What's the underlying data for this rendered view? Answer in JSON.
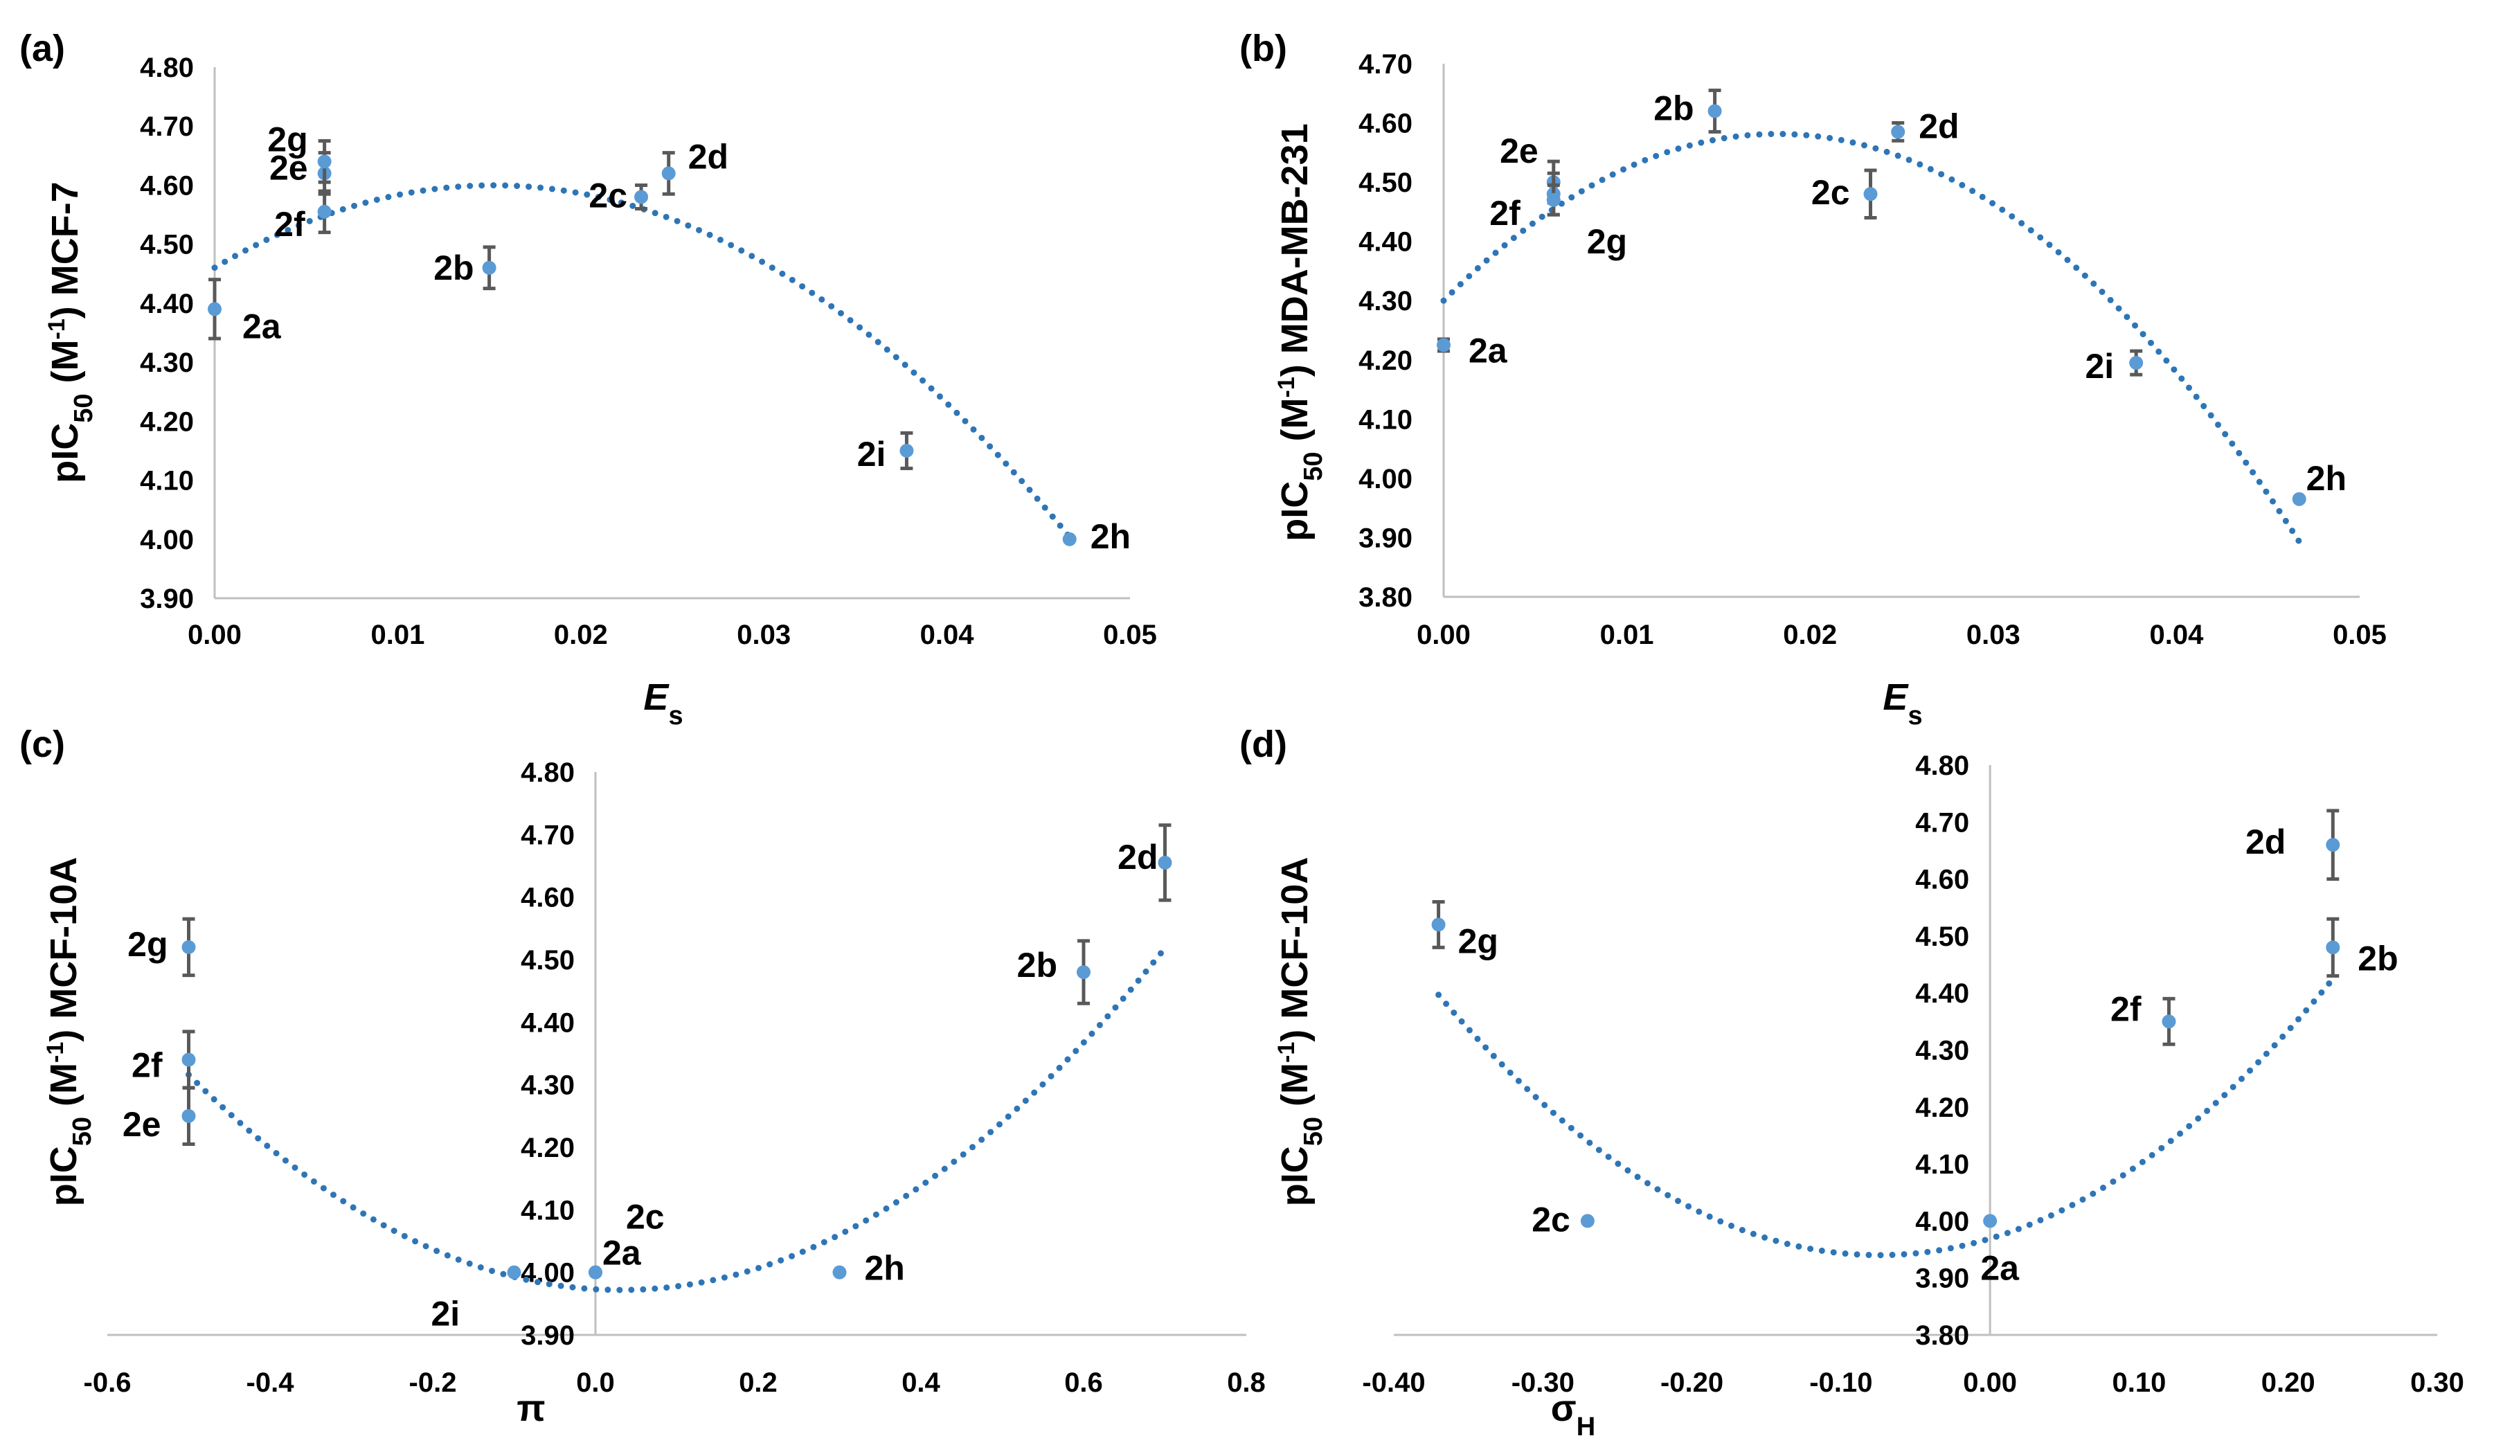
{
  "figure": {
    "colors": {
      "point": "#5b9bd5",
      "trend": "#2e75b6",
      "errorbar": "#595959",
      "axis": "#bfbfbf",
      "text": "#000000"
    }
  },
  "chart_data": [
    {
      "type": "scatter",
      "panel_label": "(a)",
      "ylabel": {
        "pre": "pIC",
        "sub": "50",
        "mid": " (M",
        "sup": "-1",
        "post": ") MCF-7"
      },
      "xlabel": {
        "main": "E",
        "sub": "s"
      },
      "xlim": [
        0,
        0.05
      ],
      "ylim": [
        3.9,
        4.8
      ],
      "xticks": [
        "0.00",
        "0.01",
        "0.02",
        "0.03",
        "0.04",
        "0.05"
      ],
      "yticks": [
        "3.90",
        "4.00",
        "4.10",
        "4.20",
        "4.30",
        "4.40",
        "4.50",
        "4.60",
        "4.70",
        "4.80"
      ],
      "points": [
        {
          "label": "2a",
          "x": 0.0,
          "y": 4.39,
          "err": 0.05
        },
        {
          "label": "2b",
          "x": 0.015,
          "y": 4.46,
          "err": 0.035
        },
        {
          "label": "2c",
          "x": 0.0233,
          "y": 4.58,
          "err": 0.02
        },
        {
          "label": "2d",
          "x": 0.0248,
          "y": 4.62,
          "err": 0.035
        },
        {
          "label": "2e",
          "x": 0.006,
          "y": 4.62,
          "err": 0.035
        },
        {
          "label": "2f",
          "x": 0.006,
          "y": 4.555,
          "err": 0.035
        },
        {
          "label": "2g",
          "x": 0.006,
          "y": 4.64,
          "err": 0.035
        },
        {
          "label": "2h",
          "x": 0.0467,
          "y": 4.0,
          "err": 0.0
        },
        {
          "label": "2i",
          "x": 0.0378,
          "y": 4.15,
          "err": 0.03
        }
      ],
      "trend": {
        "type": "quadratic",
        "a": -601.8,
        "b": 18.33,
        "c": 4.4602,
        "x_range": [
          0,
          0.0467
        ]
      }
    },
    {
      "type": "scatter",
      "panel_label": "(b)",
      "ylabel": {
        "pre": "pIC",
        "sub": "50",
        "mid": " (M",
        "sup": "-1",
        "post": ") MDA-MB-231"
      },
      "xlabel": {
        "main": "E",
        "sub": "s"
      },
      "xlim": [
        0,
        0.05
      ],
      "ylim": [
        3.8,
        4.7
      ],
      "xticks": [
        "0.00",
        "0.01",
        "0.02",
        "0.03",
        "0.04",
        "0.05"
      ],
      "yticks": [
        "3.80",
        "3.90",
        "4.00",
        "4.10",
        "4.20",
        "4.30",
        "4.40",
        "4.50",
        "4.60",
        "4.70"
      ],
      "points": [
        {
          "label": "2a",
          "x": 0.0,
          "y": 4.225,
          "err": 0.01
        },
        {
          "label": "2b",
          "x": 0.0148,
          "y": 4.62,
          "err": 0.035
        },
        {
          "label": "2c",
          "x": 0.0233,
          "y": 4.48,
          "err": 0.04
        },
        {
          "label": "2d",
          "x": 0.0248,
          "y": 4.585,
          "err": 0.015
        },
        {
          "label": "2e",
          "x": 0.006,
          "y": 4.5,
          "err": 0.035
        },
        {
          "label": "2f",
          "x": 0.006,
          "y": 4.48,
          "err": 0.035
        },
        {
          "label": "2g",
          "x": 0.006,
          "y": 4.47,
          "err": 0.025
        },
        {
          "label": "2h",
          "x": 0.0467,
          "y": 3.965,
          "err": 0.0
        },
        {
          "label": "2i",
          "x": 0.0378,
          "y": 4.195,
          "err": 0.02
        }
      ],
      "trend": {
        "type": "quadratic",
        "a": -848.2,
        "b": 30.9,
        "c": 4.3,
        "x_range": [
          0,
          0.0467
        ]
      }
    },
    {
      "type": "scatter",
      "panel_label": "(c)",
      "ylabel": {
        "pre": "pIC",
        "sub": "50",
        "mid": " (M",
        "sup": "-1",
        "post": ") MCF-10A"
      },
      "xlabel": {
        "main": "π",
        "sub": ""
      },
      "xlim": [
        -0.6,
        0.8
      ],
      "ylim": [
        3.9,
        4.8
      ],
      "xticks": [
        "-0.6",
        "-0.4",
        "-0.2",
        "0.0",
        "0.2",
        "0.4",
        "0.6",
        "0.8"
      ],
      "yticks": [
        "3.90",
        "4.00",
        "4.10",
        "4.20",
        "4.30",
        "4.40",
        "4.50",
        "4.60",
        "4.70",
        "4.80"
      ],
      "points": [
        {
          "label": "2a",
          "x": 0.0,
          "y": 4.0,
          "err": 0.0
        },
        {
          "label": "2b",
          "x": 0.6,
          "y": 4.48,
          "err": 0.05
        },
        {
          "label": "2c",
          "x": 0.0,
          "y": 4.0,
          "err": 0.0
        },
        {
          "label": "2d",
          "x": 0.7,
          "y": 4.655,
          "err": 0.06
        },
        {
          "label": "2e",
          "x": -0.5,
          "y": 4.25,
          "err": 0.045
        },
        {
          "label": "2f",
          "x": -0.5,
          "y": 4.34,
          "err": 0.045
        },
        {
          "label": "2g",
          "x": -0.5,
          "y": 4.52,
          "err": 0.045
        },
        {
          "label": "2h",
          "x": 0.3,
          "y": 4.0,
          "err": 0.0
        },
        {
          "label": "2i",
          "x": -0.1,
          "y": 4.0,
          "err": 0.0
        }
      ],
      "trend": {
        "type": "quadratic",
        "a": 1.221,
        "b": -0.0755,
        "c": 3.973,
        "x_range": [
          -0.5,
          0.7
        ]
      }
    },
    {
      "type": "scatter",
      "panel_label": "(d)",
      "ylabel": {
        "pre": "pIC",
        "sub": "50",
        "mid": " (M",
        "sup": "-1",
        "post": ") MCF-10A"
      },
      "xlabel": {
        "main": "σ",
        "sub": "H"
      },
      "xlim": [
        -0.4,
        0.3
      ],
      "ylim": [
        3.8,
        4.8
      ],
      "xticks": [
        "-0.40",
        "-0.30",
        "-0.20",
        "-0.10",
        "0.00",
        "0.10",
        "0.20",
        "0.30"
      ],
      "yticks": [
        "3.80",
        "3.90",
        "4.00",
        "4.10",
        "4.20",
        "4.30",
        "4.40",
        "4.50",
        "4.60",
        "4.70",
        "4.80"
      ],
      "points": [
        {
          "label": "2a",
          "x": 0.0,
          "y": 4.0,
          "err": 0.0
        },
        {
          "label": "2b",
          "x": 0.23,
          "y": 4.48,
          "err": 0.05
        },
        {
          "label": "2c",
          "x": -0.27,
          "y": 4.0,
          "err": 0.0
        },
        {
          "label": "2d",
          "x": 0.23,
          "y": 4.66,
          "err": 0.06
        },
        {
          "label": "2f",
          "x": 0.12,
          "y": 4.35,
          "err": 0.04
        },
        {
          "label": "2g",
          "x": -0.37,
          "y": 4.52,
          "err": 0.04
        }
      ],
      "trend": {
        "type": "quadratic",
        "a": 5.23,
        "b": 0.7787,
        "c": 3.969,
        "x_range": [
          -0.37,
          0.23
        ]
      }
    }
  ]
}
